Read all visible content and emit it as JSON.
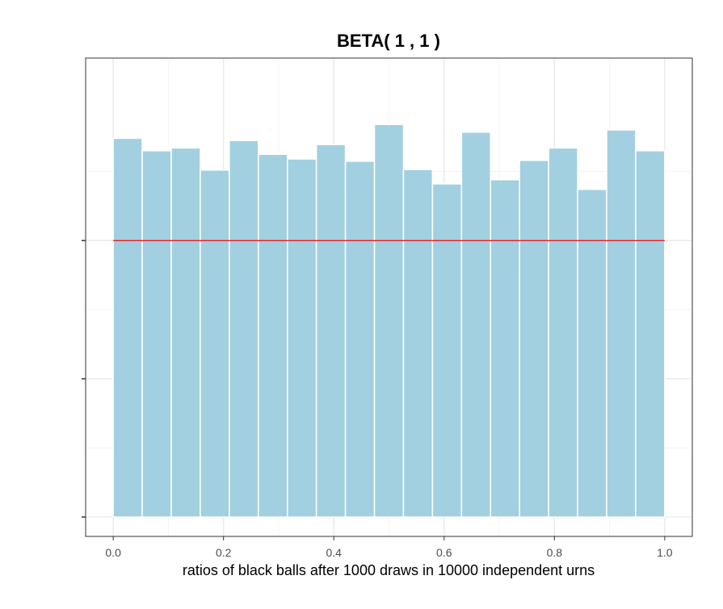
{
  "chart_data": {
    "type": "histogram",
    "title": "BETA( 1 , 1 )",
    "xlabel": "ratios of black balls after 1000 draws in 10000 independent urns",
    "ylabel": "",
    "xlim": [
      -0.05,
      1.05
    ],
    "ylim": [
      -0.07,
      1.66
    ],
    "x_ticks": [
      0.0,
      0.2,
      0.4,
      0.6,
      0.8,
      1.0
    ],
    "x_tick_labels": [
      "0.0",
      "0.2",
      "0.4",
      "0.6",
      "0.8",
      "1.0"
    ],
    "y_ticks": [
      0,
      0.5,
      1.0
    ],
    "y_tick_labels_visible": false,
    "bin_width": 0.0526,
    "bin_starts": [
      0.0,
      0.0526,
      0.1053,
      0.1579,
      0.2105,
      0.2632,
      0.3158,
      0.3684,
      0.4211,
      0.4737,
      0.5263,
      0.5789,
      0.6316,
      0.6842,
      0.7368,
      0.7895,
      0.8421,
      0.8947,
      0.9474
    ],
    "density": [
      1.37,
      1.325,
      1.335,
      1.255,
      1.362,
      1.312,
      1.295,
      1.347,
      1.287,
      1.42,
      1.257,
      1.205,
      1.392,
      1.22,
      1.29,
      1.335,
      1.185,
      1.4,
      1.325
    ],
    "reference_line": {
      "y": 1.0,
      "x_range": [
        0.0,
        1.0
      ],
      "color": "#ff0000"
    },
    "grid": true,
    "colors": {
      "bar_fill": "#a2d0e0",
      "bar_edge": "#ffffff",
      "panel_border": "#333333",
      "grid_major": "#ebebeb",
      "grid_minor": "#f4f4f4"
    }
  }
}
